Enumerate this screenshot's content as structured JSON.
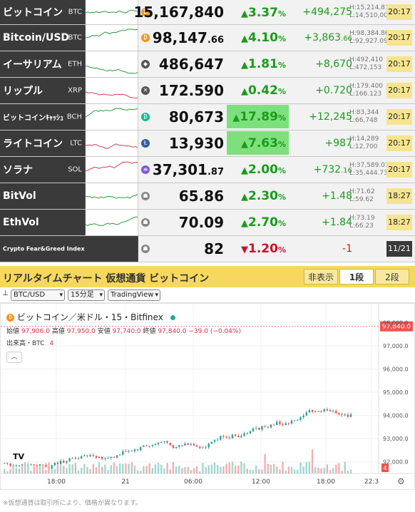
{
  "rows": [
    {
      "name": "ビットコイン",
      "sym": "BTC",
      "price": "15,167,840",
      "price_dec": "",
      "pct": "3.37",
      "chg": "+494,275",
      "chg_dec": "",
      "high": "H:15,214,818",
      "low": "L:14,510,000",
      "time": "20:17",
      "icon": "bitcoin-icon",
      "icon_color": "#f7931a",
      "icon_glyph": "₿",
      "pct_hi": false,
      "dir": "up"
    },
    {
      "name": "Bitcoin/USD",
      "sym": "BTC",
      "price": "98,147",
      "price_dec": ".66",
      "pct": "4.10",
      "chg": "+3,863",
      "chg_dec": ".66",
      "high": "H:98,384.86",
      "low": "L:92,927.09",
      "time": "20:17",
      "icon": "bitcoin-icon",
      "icon_color": "#f7931a",
      "icon_glyph": "₿",
      "pct_hi": false,
      "dir": "up"
    },
    {
      "name": "イーサリアム",
      "sym": "ETH",
      "price": "486,647",
      "price_dec": "",
      "pct": "1.81",
      "chg": "+8,670",
      "chg_dec": "",
      "high": "H:492,410",
      "low": "L:472,153",
      "time": "20:17",
      "icon": "ethereum-icon",
      "icon_color": "#555",
      "icon_glyph": "◆",
      "pct_hi": false,
      "dir": "up"
    },
    {
      "name": "リップル",
      "sym": "XRP",
      "price": "172.590",
      "price_dec": "",
      "pct": "0.42",
      "chg": "+0.720",
      "chg_dec": "",
      "high": "H:179.400",
      "low": "L:166.123",
      "time": "20:17",
      "icon": "xrp-icon",
      "icon_color": "#555",
      "icon_glyph": "✕",
      "pct_hi": false,
      "dir": "up"
    },
    {
      "name": "ビットコインｷｬｯｼｭ",
      "sym": "BCH",
      "price": "80,673",
      "price_dec": "",
      "pct": "17.89",
      "chg": "+12,245",
      "chg_dec": "",
      "high": "H:83,344",
      "low": "L:66,748",
      "time": "20:17",
      "icon": "bitcoin-cash-icon",
      "icon_color": "#0ac18e",
      "icon_glyph": "₿",
      "pct_hi": true,
      "dir": "up"
    },
    {
      "name": "ライトコイン",
      "sym": "LTC",
      "price": "13,930",
      "price_dec": "",
      "pct": "7.63",
      "chg": "+987",
      "chg_dec": "",
      "high": "H:14,289",
      "low": "L:12,700",
      "time": "20:17",
      "icon": "litecoin-icon",
      "icon_color": "#345d9d",
      "icon_glyph": "Ł",
      "pct_hi": true,
      "dir": "up"
    },
    {
      "name": "ソラナ",
      "sym": "SOL",
      "price": "37,301",
      "price_dec": ".87",
      "pct": "2.00",
      "chg": "+732",
      "chg_dec": ".16",
      "high": "H:37,589.01",
      "low": "L:35,444.73",
      "time": "20:17",
      "icon": "solana-icon",
      "icon_color": "#7b5cd6",
      "icon_glyph": "≡",
      "pct_hi": false,
      "dir": "up"
    },
    {
      "name": "BitVol",
      "sym": "",
      "price": "65.86",
      "price_dec": "",
      "pct": "2.30",
      "chg": "+1.48",
      "chg_dec": "",
      "high": "H:71.62",
      "low": "L:59.62",
      "time": "18:27",
      "icon": "bitvol-icon",
      "icon_color": "#888",
      "icon_glyph": "☗",
      "pct_hi": false,
      "dir": "up"
    },
    {
      "name": "EthVol",
      "sym": "",
      "price": "70.09",
      "price_dec": "",
      "pct": "2.70",
      "chg": "+1.84",
      "chg_dec": "",
      "high": "H:73.19",
      "low": "L:66.23",
      "time": "18:27",
      "icon": "ethvol-icon",
      "icon_color": "#888",
      "icon_glyph": "☗",
      "pct_hi": false,
      "dir": "up"
    },
    {
      "name": "Crypto Fear&Greed Index",
      "sym": "",
      "price": "82",
      "price_dec": "",
      "pct": "1.20",
      "chg": "-1",
      "chg_dec": "",
      "high": "",
      "low": "",
      "time": "11/21",
      "icon": "fear-greed-icon",
      "icon_color": "#888",
      "icon_glyph": "☗",
      "pct_hi": false,
      "dir": "down"
    }
  ],
  "chart_bar": {
    "title": "リアルタイムチャート 仮想通貨 ビットコイン",
    "hide": "非表示",
    "one": "1段",
    "two": "2段"
  },
  "toolbar": {
    "pair": "BTC/USD",
    "interval": "15分足",
    "provider": "TradingView"
  },
  "chart": {
    "symbol_title": "ビットコイン／米ドル・15・Bitfinex",
    "ohlc_label": "始値",
    "open": "97,906.0",
    "high_label": "高値",
    "high": "97,950.0",
    "low_label": "安値",
    "low": "97,740.0",
    "close_label": "終値",
    "close": "97,840.0",
    "change": "−39.0 (−0.04%)",
    "volume_label": "出来高・BTC",
    "volume": "4",
    "last_price_tag": "97,840.0",
    "volume_tag": "4",
    "y_ticks": [
      "98,000.0",
      "97,000.0",
      "96,000.0",
      "95,000.0",
      "94,000.0",
      "93,000.0",
      "92,000.0"
    ],
    "x_ticks": [
      "18:00",
      "21",
      "06:00",
      "12:00",
      "18:00",
      "22:3"
    ],
    "logo": "TV"
  },
  "footer_note": "※仮想通貨は取引所により、価格が異なります。",
  "colors": {
    "up": "#1a9c1a",
    "down": "#d0102a",
    "bar": "#f6d85e",
    "candle_up": "#26a69a",
    "candle_down": "#ef5350"
  }
}
